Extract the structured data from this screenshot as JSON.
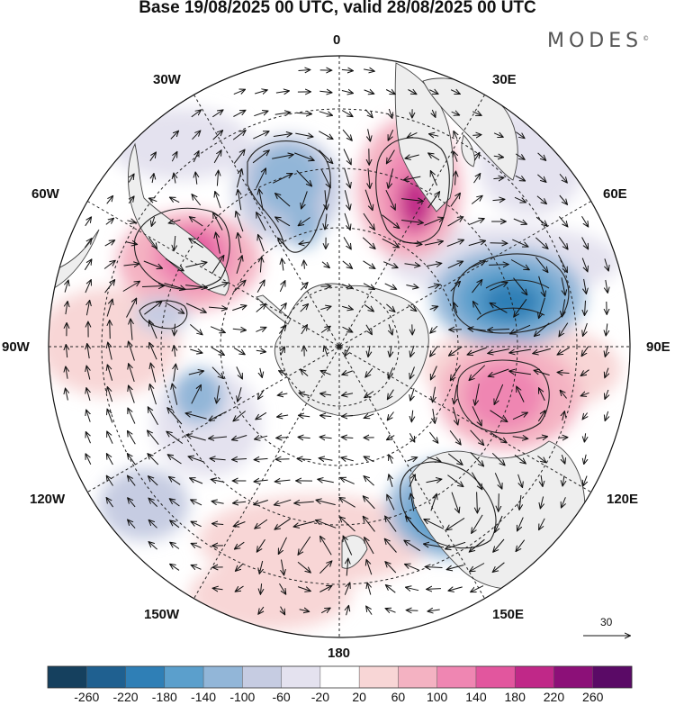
{
  "title": "Base 19/08/2025 00 UTC, valid 28/08/2025 00 UTC",
  "brand": "MODES",
  "brand_mark": "©",
  "longitude_labels": {
    "lon_0": "0",
    "lon_30e": "30E",
    "lon_60e": "60E",
    "lon_90e": "90E",
    "lon_120e": "120E",
    "lon_150e": "150E",
    "lon_180": "180",
    "lon_150w": "150W",
    "lon_120w": "120W",
    "lon_90w": "90W",
    "lon_60w": "60W",
    "lon_30w": "30W"
  },
  "reference_vector": "30",
  "colorbar": {
    "labels": [
      "-260",
      "-220",
      "-180",
      "-140",
      "-100",
      "-60",
      "-20",
      "20",
      "60",
      "100",
      "140",
      "180",
      "220",
      "260"
    ],
    "colors": [
      "#15405e",
      "#1f6090",
      "#2f7fb6",
      "#5b9fcc",
      "#92b6d8",
      "#c6cce2",
      "#e4e2ef",
      "#ffffff",
      "#f8d6d6",
      "#f4b2c2",
      "#ef86b2",
      "#e2569e",
      "#c02888",
      "#8c1078",
      "#5a0a66"
    ]
  },
  "map_colors": {
    "ocean": "#ffffff",
    "land": "#eeeeee",
    "coast": "#444444"
  }
}
